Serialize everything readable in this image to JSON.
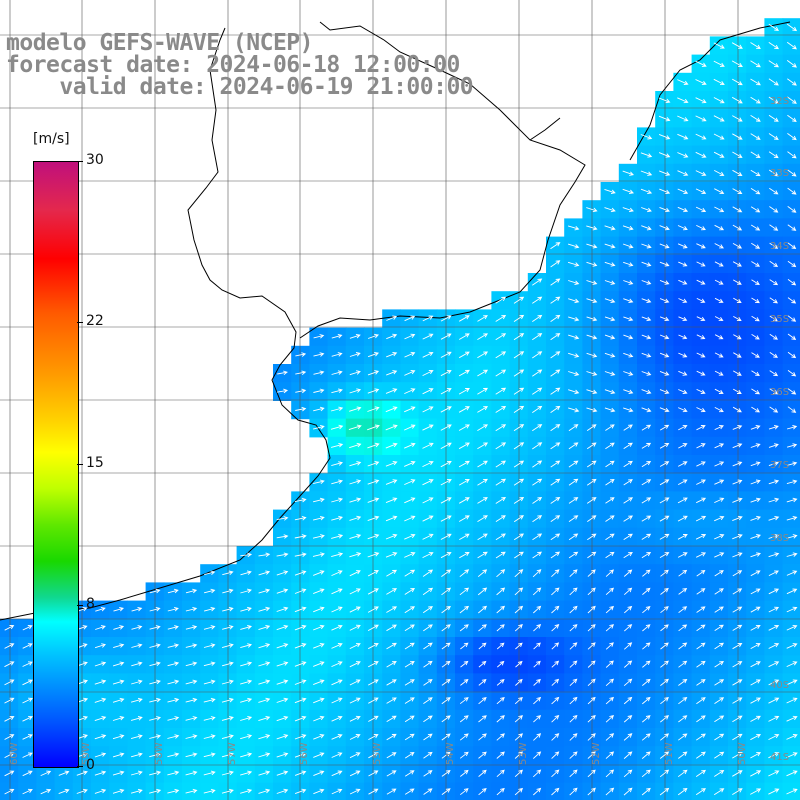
{
  "title": {
    "line1": "modelo GEFS-WAVE (NCEP)",
    "line2": "forecast date: 2024-06-18 12:00:00",
    "line3": "    valid date: 2024-06-19 21:00:00"
  },
  "legend": {
    "units": "[m/s]",
    "ticks": [
      {
        "label": "30",
        "value": 30
      },
      {
        "label": "22",
        "value": 22
      },
      {
        "label": "15",
        "value": 15
      },
      {
        "label": "8",
        "value": 8
      },
      {
        "label": "0",
        "value": 0
      }
    ]
  },
  "map": {
    "lat_labels": [
      "32S",
      "33S",
      "34S",
      "35S",
      "36S",
      "37S",
      "38S",
      "40S",
      "41S"
    ],
    "lon_labels": [
      "60W",
      "59W",
      "58W",
      "57W",
      "56W",
      "55W",
      "54W",
      "53W",
      "52W",
      "51W",
      "50W"
    ],
    "colors": {
      "land": "#ffffff",
      "grid": "#555555",
      "coast": "#000000",
      "arrows": "#ffffff"
    }
  }
}
